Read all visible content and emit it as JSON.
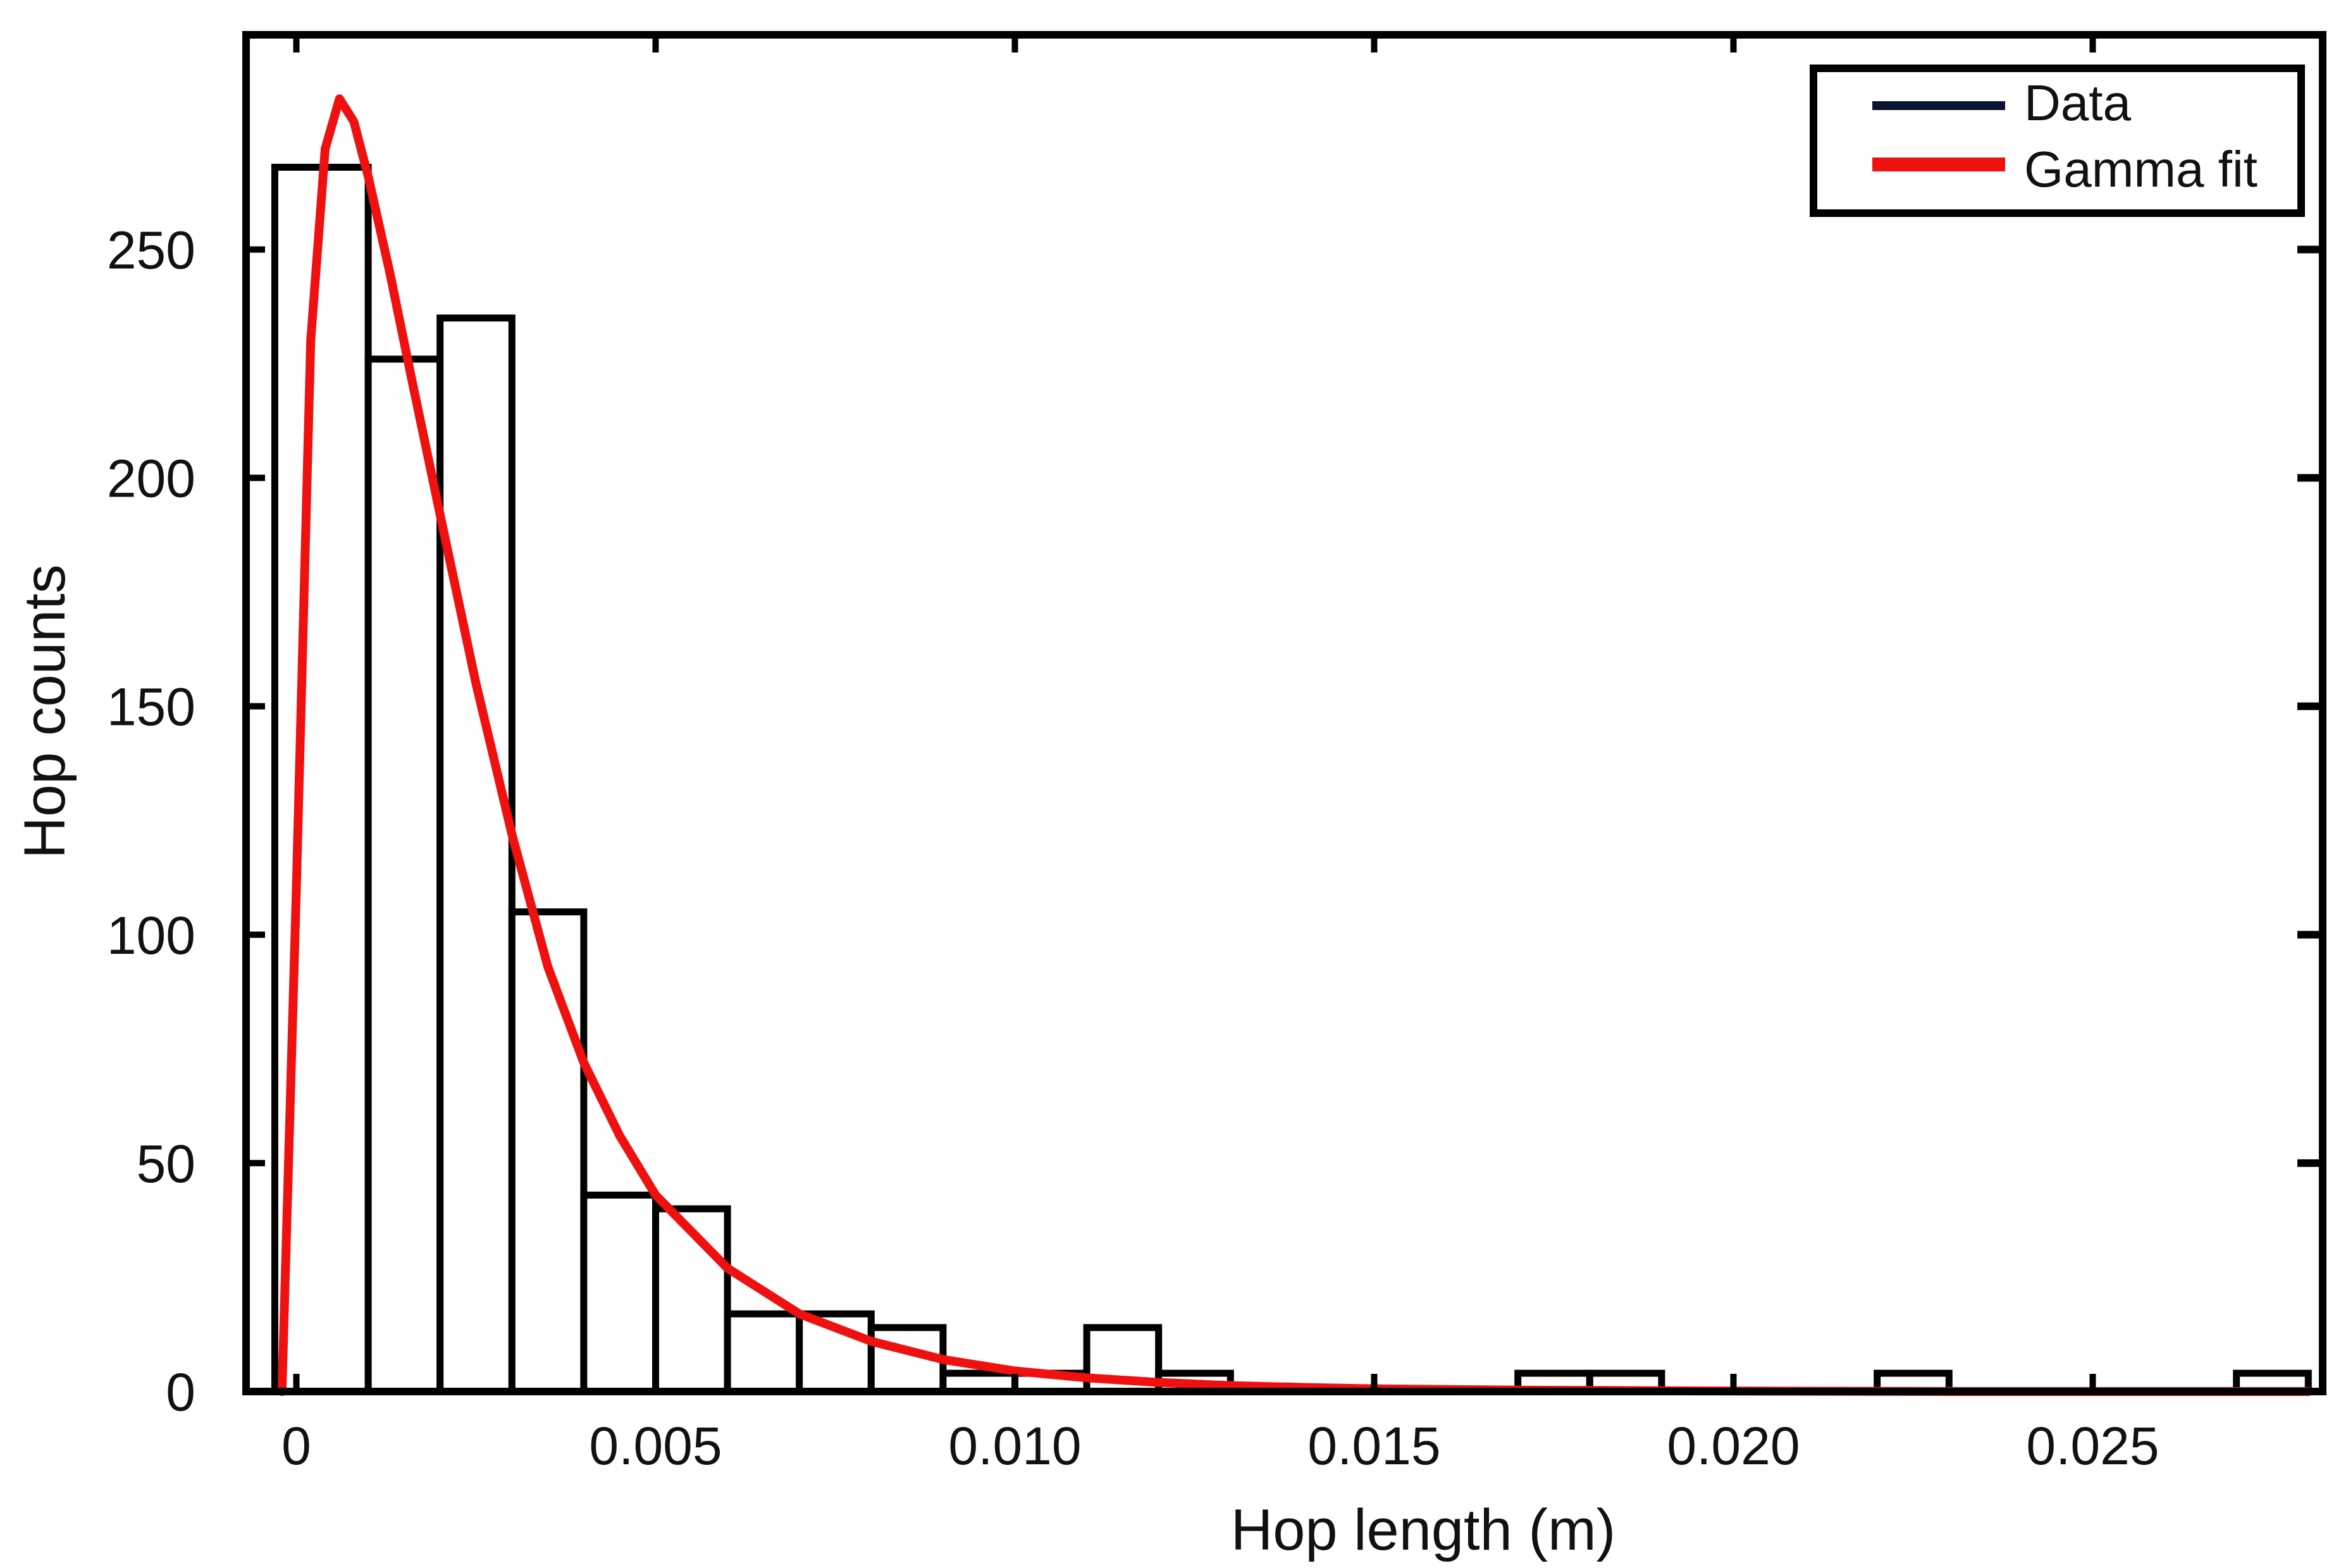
{
  "chart_data": {
    "type": "bar",
    "title": "",
    "xlabel": "Hop length (m)",
    "ylabel": "Hop counts",
    "xlim": [
      -0.0007,
      0.0282
    ],
    "ylim": [
      0,
      297
    ],
    "x_ticks": [
      0,
      0.005,
      0.01,
      0.015,
      0.02,
      0.025
    ],
    "x_tick_labels": [
      "0",
      "0.005",
      "0.010",
      "0.015",
      "0.020",
      "0.025"
    ],
    "y_ticks": [
      0,
      50,
      100,
      150,
      200,
      250
    ],
    "y_tick_labels": [
      "0",
      "50",
      "100",
      "150",
      "200",
      "250"
    ],
    "bin_width": 0.001,
    "bins": [
      {
        "start": -0.0003,
        "count": 268
      },
      {
        "start": 0.001,
        "count": 226
      },
      {
        "start": 0.002,
        "count": 235
      },
      {
        "start": 0.003,
        "count": 105
      },
      {
        "start": 0.004,
        "count": 43
      },
      {
        "start": 0.005,
        "count": 40
      },
      {
        "start": 0.006,
        "count": 17
      },
      {
        "start": 0.007,
        "count": 17
      },
      {
        "start": 0.008,
        "count": 14
      },
      {
        "start": 0.009,
        "count": 4
      },
      {
        "start": 0.01,
        "count": 4
      },
      {
        "start": 0.011,
        "count": 14
      },
      {
        "start": 0.012,
        "count": 4
      },
      {
        "start": 0.017,
        "count": 4
      },
      {
        "start": 0.018,
        "count": 4
      },
      {
        "start": 0.022,
        "count": 4
      },
      {
        "start": 0.027,
        "count": 4
      }
    ],
    "gamma_fit": {
      "x": [
        -0.0002,
        0,
        0.0002,
        0.0004,
        0.0006,
        0.0008,
        0.001,
        0.0013,
        0.0016,
        0.002,
        0.0025,
        0.003,
        0.0035,
        0.004,
        0.0045,
        0.005,
        0.006,
        0.007,
        0.008,
        0.009,
        0.01,
        0.011,
        0.012,
        0.013,
        0.014,
        0.015,
        0.017,
        0.02,
        0.023,
        0.026,
        0.028
      ],
      "y": [
        0,
        110,
        230,
        272,
        283,
        278,
        266,
        245,
        222,
        192,
        155,
        122,
        93,
        72,
        56,
        43,
        27,
        17,
        11,
        7,
        4.5,
        3,
        2,
        1.3,
        0.9,
        0.6,
        0.3,
        0.1,
        0,
        0,
        0
      ]
    },
    "legend": [
      {
        "label": "Data",
        "color": "#0d1333"
      },
      {
        "label": "Gamma fit",
        "color": "#ef1010"
      }
    ],
    "legend_position": "top-right",
    "colors": {
      "bar_edge": "#000000",
      "bar_fill": "#ffffff",
      "fit": "#ef1010",
      "data_line": "#0d1333"
    }
  }
}
